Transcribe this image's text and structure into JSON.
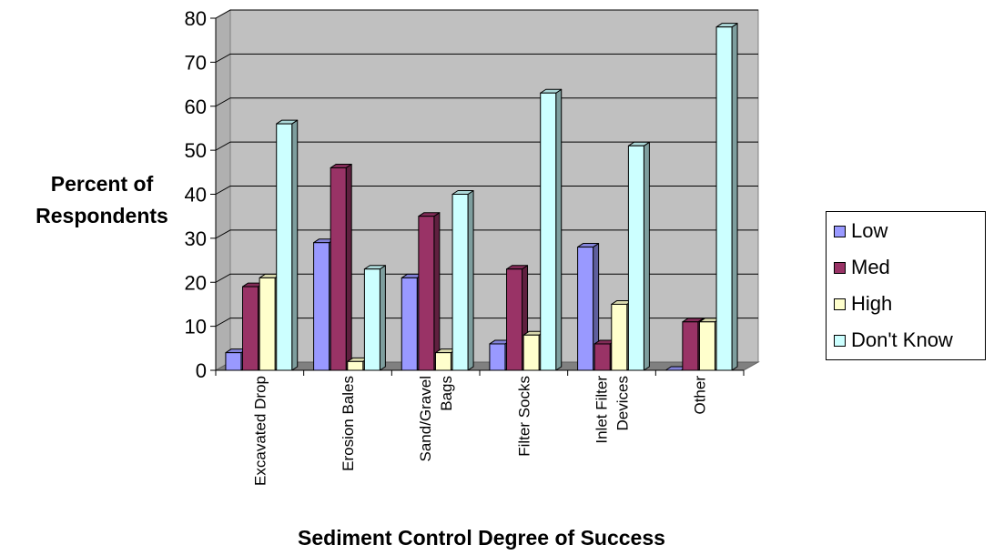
{
  "chart_data": {
    "type": "bar",
    "xlabel": "Sediment Control Degree of Success",
    "ylabel": "Percent of\nRespondents",
    "ylim": [
      0,
      80
    ],
    "yticks": [
      0,
      10,
      20,
      30,
      40,
      50,
      60,
      70,
      80
    ],
    "grid": true,
    "legend_position": "right",
    "categories": [
      "Excavated Drop",
      "Erosion Bales",
      "Sand/Gravel Bags",
      "Filter Socks",
      "Inlet Filter Devices",
      "Other"
    ],
    "category_lines": [
      [
        "Excavated Drop"
      ],
      [
        "Erosion Bales"
      ],
      [
        "Sand/Gravel",
        "Bags"
      ],
      [
        "Filter Socks"
      ],
      [
        "Inlet Filter",
        "Devices"
      ],
      [
        "Other"
      ]
    ],
    "series": [
      {
        "name": "Low",
        "color": "#9999FF",
        "values": [
          4,
          29,
          21,
          6,
          28,
          0
        ]
      },
      {
        "name": "Med",
        "color": "#993366",
        "values": [
          19,
          46,
          35,
          23,
          6,
          11
        ]
      },
      {
        "name": "High",
        "color": "#FFFFCC",
        "values": [
          21,
          2,
          4,
          8,
          15,
          11
        ]
      },
      {
        "name": "Don't Know",
        "color": "#CCFFFF",
        "values": [
          56,
          23,
          40,
          63,
          51,
          78
        ]
      }
    ]
  }
}
